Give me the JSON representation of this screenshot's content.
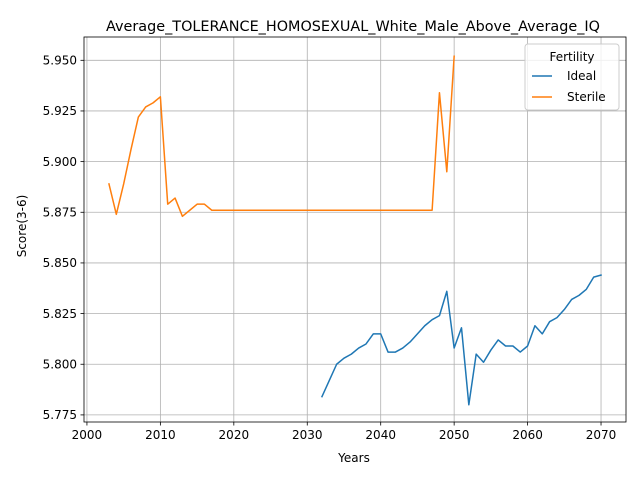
{
  "chart_data": {
    "type": "line",
    "title": "Average_TOLERANCE_HOMOSEXUAL_White_Male_Above_Average_IQ",
    "xlabel": "Years",
    "ylabel": "Score(3-6)",
    "xlim": [
      1999.6,
      2073.4
    ],
    "ylim": [
      5.7715,
      5.9615
    ],
    "xticks": [
      2000,
      2010,
      2020,
      2030,
      2040,
      2050,
      2060,
      2070
    ],
    "yticks": [
      5.775,
      5.8,
      5.825,
      5.85,
      5.875,
      5.9,
      5.925,
      5.95
    ],
    "grid": true,
    "legend": {
      "title": "Fertility",
      "placement": "top-right"
    },
    "series": [
      {
        "name": "Ideal",
        "color": "#1f77b4",
        "x": [
          2032,
          2033,
          2034,
          2035,
          2036,
          2037,
          2038,
          2039,
          2040,
          2041,
          2042,
          2043,
          2044,
          2045,
          2046,
          2047,
          2048,
          2049,
          2050,
          2051,
          2052,
          2053,
          2054,
          2055,
          2056,
          2057,
          2058,
          2059,
          2060,
          2061,
          2062,
          2063,
          2064,
          2065,
          2066,
          2067,
          2068,
          2069,
          2070
        ],
        "y": [
          5.784,
          5.792,
          5.8,
          5.803,
          5.805,
          5.808,
          5.81,
          5.815,
          5.815,
          5.806,
          5.806,
          5.808,
          5.811,
          5.815,
          5.819,
          5.822,
          5.824,
          5.836,
          5.808,
          5.818,
          5.78,
          5.805,
          5.801,
          5.807,
          5.812,
          5.809,
          5.809,
          5.806,
          5.809,
          5.819,
          5.815,
          5.821,
          5.823,
          5.827,
          5.832,
          5.834,
          5.837,
          5.843,
          5.844
        ]
      },
      {
        "name": "Sterile",
        "color": "#ff7f0e",
        "x": [
          2003,
          2004,
          2005,
          2006,
          2007,
          2008,
          2009,
          2010,
          2011,
          2012,
          2013,
          2014,
          2015,
          2016,
          2017,
          2018,
          2019,
          2020,
          2025,
          2030,
          2035,
          2040,
          2045,
          2046,
          2047,
          2048,
          2049,
          2050
        ],
        "y": [
          5.889,
          5.874,
          5.889,
          5.906,
          5.922,
          5.927,
          5.929,
          5.932,
          5.879,
          5.882,
          5.873,
          5.876,
          5.879,
          5.879,
          5.876,
          5.876,
          5.876,
          5.876,
          5.876,
          5.876,
          5.876,
          5.876,
          5.876,
          5.876,
          5.876,
          5.934,
          5.895,
          5.952
        ]
      }
    ]
  }
}
